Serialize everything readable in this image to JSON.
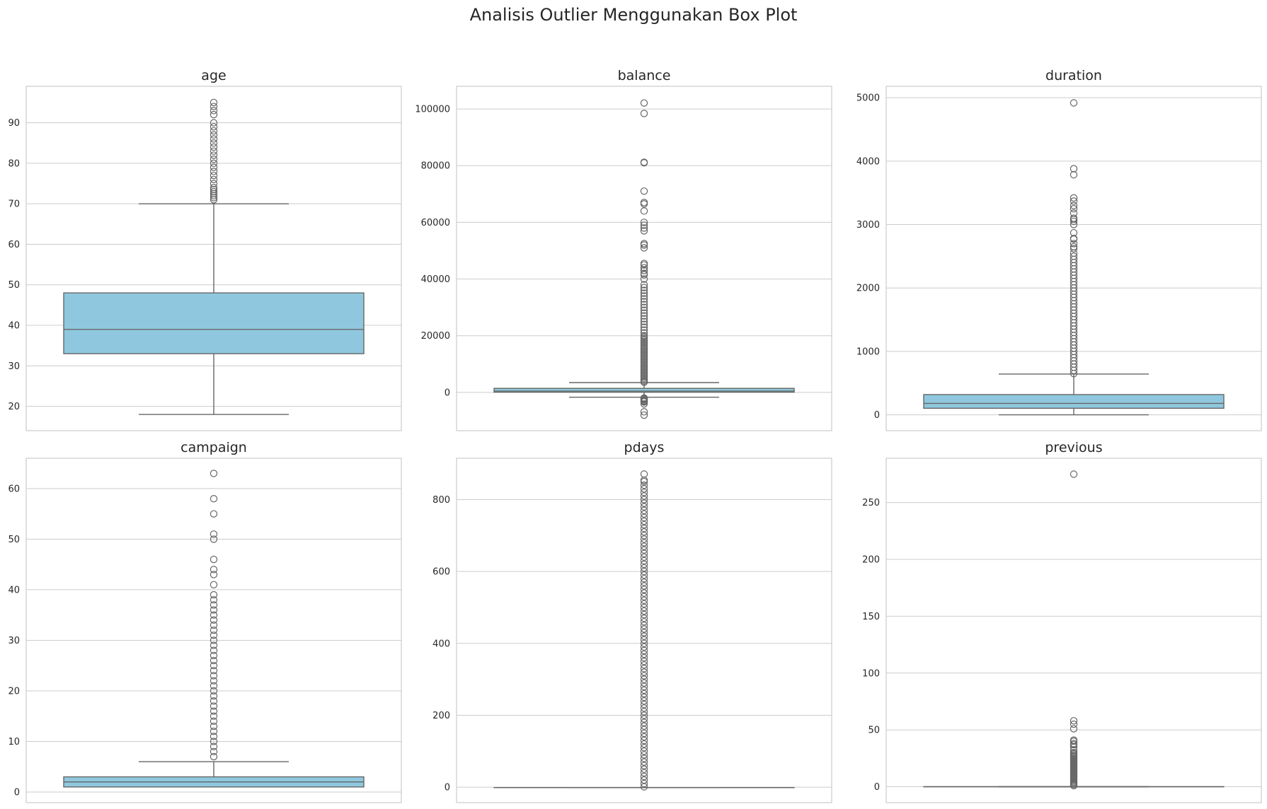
{
  "figure": {
    "title": "Analisis Outlier Menggunakan Box Plot",
    "box_color": "#8fc8de",
    "line_color": "#666666",
    "grid": true
  },
  "chart_data": [
    {
      "type": "box",
      "title": "age",
      "ylim": [
        14,
        99
      ],
      "yticks": [
        20,
        30,
        40,
        50,
        60,
        70,
        80,
        90
      ],
      "whisker_low": 18,
      "q1": 33,
      "median": 39,
      "q3": 48,
      "whisker_high": 70,
      "outliers": [
        71,
        71.5,
        72,
        72.5,
        73,
        73.5,
        74,
        75,
        76,
        77,
        78,
        79,
        80,
        81,
        82,
        83,
        84,
        85,
        86,
        87,
        88,
        89,
        90,
        92,
        93,
        94,
        95
      ]
    },
    {
      "type": "box",
      "title": "balance",
      "ylim": [
        -13500,
        108000
      ],
      "yticks": [
        0,
        20000,
        40000,
        60000,
        80000,
        100000
      ],
      "whisker_low": -1700,
      "q1": 72,
      "median": 448,
      "q3": 1428,
      "whisker_high": 3462,
      "outliers": [
        -8019,
        -6847,
        -4057,
        -3372,
        -3313,
        -3058,
        -2712,
        -2604,
        -2282,
        -2122,
        -2049,
        -1968,
        3600,
        4000,
        4500,
        5000,
        5500,
        6000,
        6500,
        7000,
        7500,
        8000,
        8500,
        9000,
        9500,
        10000,
        10500,
        11000,
        11500,
        12000,
        12500,
        13000,
        13500,
        14000,
        14500,
        15000,
        15500,
        16000,
        16500,
        17000,
        17500,
        18000,
        18500,
        19000,
        19500,
        20000,
        21000,
        22000,
        23000,
        24000,
        25000,
        26000,
        27000,
        28000,
        29000,
        30000,
        31000,
        32000,
        33000,
        34000,
        35000,
        36000,
        37000,
        38000,
        40000,
        41500,
        42000,
        43000,
        44000,
        45000,
        45500,
        51000,
        52000,
        52500,
        57000,
        58000,
        59000,
        60000,
        64000,
        66500,
        67000,
        71000,
        81000,
        81200,
        98400,
        102100
      ]
    },
    {
      "type": "box",
      "title": "duration",
      "ylim": [
        -250,
        5180
      ],
      "yticks": [
        0,
        1000,
        2000,
        3000,
        4000,
        5000
      ],
      "whisker_low": 0,
      "q1": 103,
      "median": 180,
      "q3": 319,
      "whisker_high": 643,
      "outliers": [
        650,
        700,
        750,
        800,
        850,
        900,
        950,
        1000,
        1050,
        1100,
        1150,
        1200,
        1250,
        1300,
        1350,
        1400,
        1450,
        1500,
        1550,
        1600,
        1650,
        1700,
        1750,
        1800,
        1850,
        1900,
        1950,
        2000,
        2050,
        2100,
        2150,
        2200,
        2250,
        2300,
        2350,
        2400,
        2450,
        2500,
        2550,
        2620,
        2650,
        2700,
        2770,
        2780,
        2870,
        3000,
        3050,
        3080,
        3100,
        3180,
        3250,
        3300,
        3370,
        3420,
        3785,
        3880,
        4918
      ]
    },
    {
      "type": "box",
      "title": "campaign",
      "ylim": [
        -2.1,
        66
      ],
      "yticks": [
        0,
        10,
        20,
        30,
        40,
        50,
        60
      ],
      "whisker_low": 1,
      "q1": 1,
      "median": 2,
      "q3": 3,
      "whisker_high": 6,
      "outliers": [
        7,
        8,
        9,
        10,
        11,
        12,
        13,
        14,
        15,
        16,
        17,
        18,
        19,
        20,
        21,
        22,
        23,
        24,
        25,
        26,
        27,
        28,
        29,
        30,
        31,
        32,
        33,
        34,
        35,
        36,
        37,
        38,
        39,
        41,
        43,
        44,
        46,
        50,
        51,
        55,
        58,
        63
      ]
    },
    {
      "type": "box",
      "title": "pdays",
      "ylim": [
        -43,
        915
      ],
      "yticks": [
        0,
        200,
        400,
        600,
        800
      ],
      "whisker_low": -1,
      "q1": -1,
      "median": -1,
      "q3": -1,
      "whisker_high": -1,
      "outliers": [
        1,
        10,
        20,
        30,
        40,
        50,
        60,
        70,
        80,
        90,
        100,
        110,
        120,
        130,
        140,
        150,
        160,
        170,
        180,
        190,
        200,
        210,
        220,
        230,
        240,
        250,
        260,
        270,
        280,
        290,
        300,
        310,
        320,
        330,
        340,
        350,
        360,
        370,
        380,
        390,
        400,
        410,
        420,
        430,
        440,
        450,
        460,
        470,
        480,
        490,
        500,
        510,
        520,
        530,
        540,
        550,
        560,
        570,
        580,
        590,
        600,
        610,
        620,
        630,
        640,
        650,
        660,
        670,
        680,
        690,
        700,
        710,
        720,
        730,
        740,
        750,
        760,
        770,
        780,
        790,
        800,
        810,
        820,
        830,
        840,
        850,
        854,
        871
      ]
    },
    {
      "type": "box",
      "title": "previous",
      "ylim": [
        -14,
        289
      ],
      "yticks": [
        0,
        50,
        100,
        150,
        200,
        250
      ],
      "whisker_low": 0,
      "q1": 0,
      "median": 0,
      "q3": 0,
      "whisker_high": 0,
      "outliers": [
        1,
        2,
        3,
        4,
        5,
        6,
        7,
        8,
        9,
        10,
        11,
        12,
        13,
        14,
        15,
        16,
        17,
        18,
        19,
        20,
        21,
        22,
        23,
        24,
        25,
        26,
        27,
        28,
        29,
        30,
        32,
        35,
        37,
        38,
        40,
        41,
        51,
        55,
        58,
        275
      ]
    }
  ]
}
